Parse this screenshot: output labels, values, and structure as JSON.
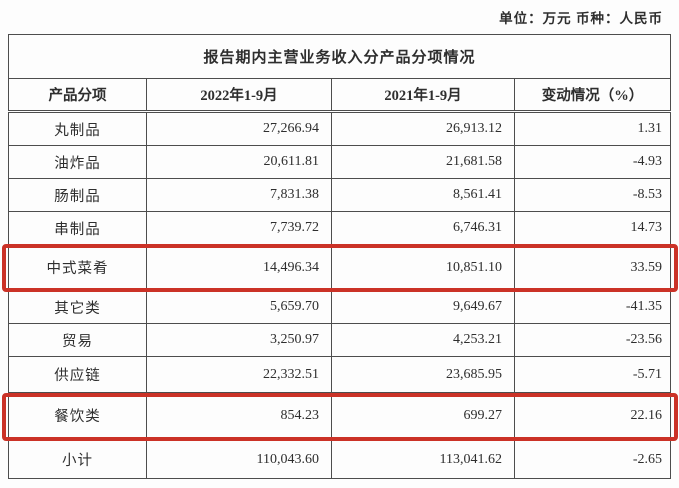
{
  "meta": {
    "unit_label": "单位：万元  币种：人民币"
  },
  "table": {
    "title": "报告期内主营业务收入分产品分项情况",
    "columns": [
      "产品分项",
      "2022年1-9月",
      "2021年1-9月",
      "变动情况（%）"
    ],
    "rows": [
      {
        "name": "丸制品",
        "y2022": "27,266.94",
        "y2021": "26,913.12",
        "change": "1.31",
        "highlighted": false
      },
      {
        "name": "油炸品",
        "y2022": "20,611.81",
        "y2021": "21,681.58",
        "change": "-4.93",
        "highlighted": false
      },
      {
        "name": "肠制品",
        "y2022": "7,831.38",
        "y2021": "8,561.41",
        "change": "-8.53",
        "highlighted": false
      },
      {
        "name": "串制品",
        "y2022": "7,739.72",
        "y2021": "6,746.31",
        "change": "14.73",
        "highlighted": false
      },
      {
        "name": "中式菜肴",
        "y2022": "14,496.34",
        "y2021": "10,851.10",
        "change": "33.59",
        "highlighted": true
      },
      {
        "name": "其它类",
        "y2022": "5,659.70",
        "y2021": "9,649.67",
        "change": "-41.35",
        "highlighted": false
      },
      {
        "name": "贸易",
        "y2022": "3,250.97",
        "y2021": "4,253.21",
        "change": "-23.56",
        "highlighted": false
      },
      {
        "name": "供应链",
        "y2022": "22,332.51",
        "y2021": "23,685.95",
        "change": "-5.71",
        "highlighted": false
      },
      {
        "name": "餐饮类",
        "y2022": "854.23",
        "y2021": "699.27",
        "change": "22.16",
        "highlighted": true
      },
      {
        "name": "小计",
        "y2022": "110,043.60",
        "y2021": "113,041.62",
        "change": "-2.65",
        "highlighted": false
      }
    ]
  },
  "highlight": {
    "box_color": "#cb3227"
  }
}
